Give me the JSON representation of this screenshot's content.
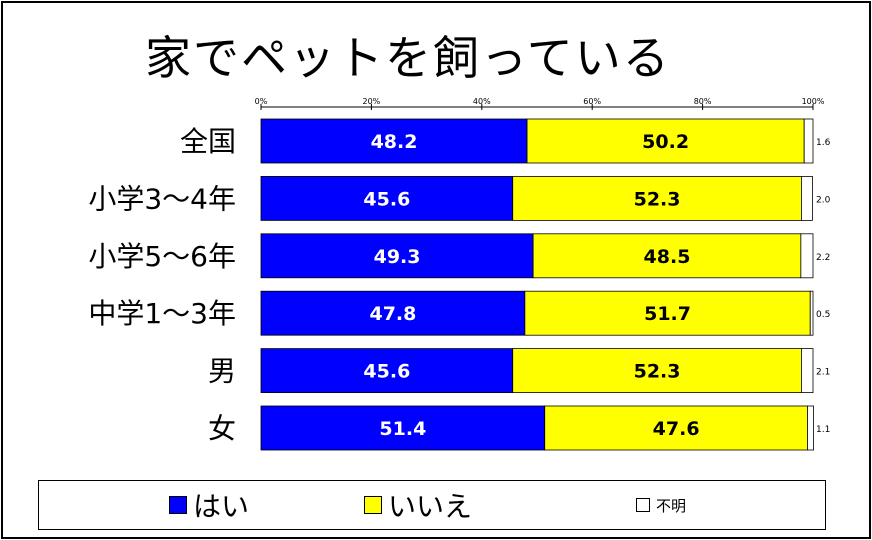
{
  "chart_data": {
    "type": "bar",
    "stacked": true,
    "orientation": "horizontal",
    "title": "家でペットを飼っている",
    "categories": [
      "全国",
      "小学3〜4年",
      "小学5〜6年",
      "中学1〜3年",
      "男",
      "女"
    ],
    "series": [
      {
        "name": "はい",
        "color": "#0000ff",
        "values": [
          48.2,
          45.6,
          49.3,
          47.8,
          45.6,
          51.4
        ],
        "label_color": "#ffffff"
      },
      {
        "name": "いいえ",
        "color": "#ffff00",
        "values": [
          50.2,
          52.3,
          48.5,
          51.7,
          52.3,
          47.6
        ],
        "label_color": "#000000"
      },
      {
        "name": "不明",
        "color": "#ffffff",
        "values": [
          1.6,
          2.0,
          2.2,
          0.5,
          2.1,
          1.1
        ],
        "label_color": "#000000"
      }
    ],
    "xlim": [
      0,
      100
    ],
    "x_ticks": [
      "0%",
      "20%",
      "40%",
      "60%",
      "80%",
      "100%"
    ],
    "grid": false,
    "legend_position": "bottom"
  }
}
